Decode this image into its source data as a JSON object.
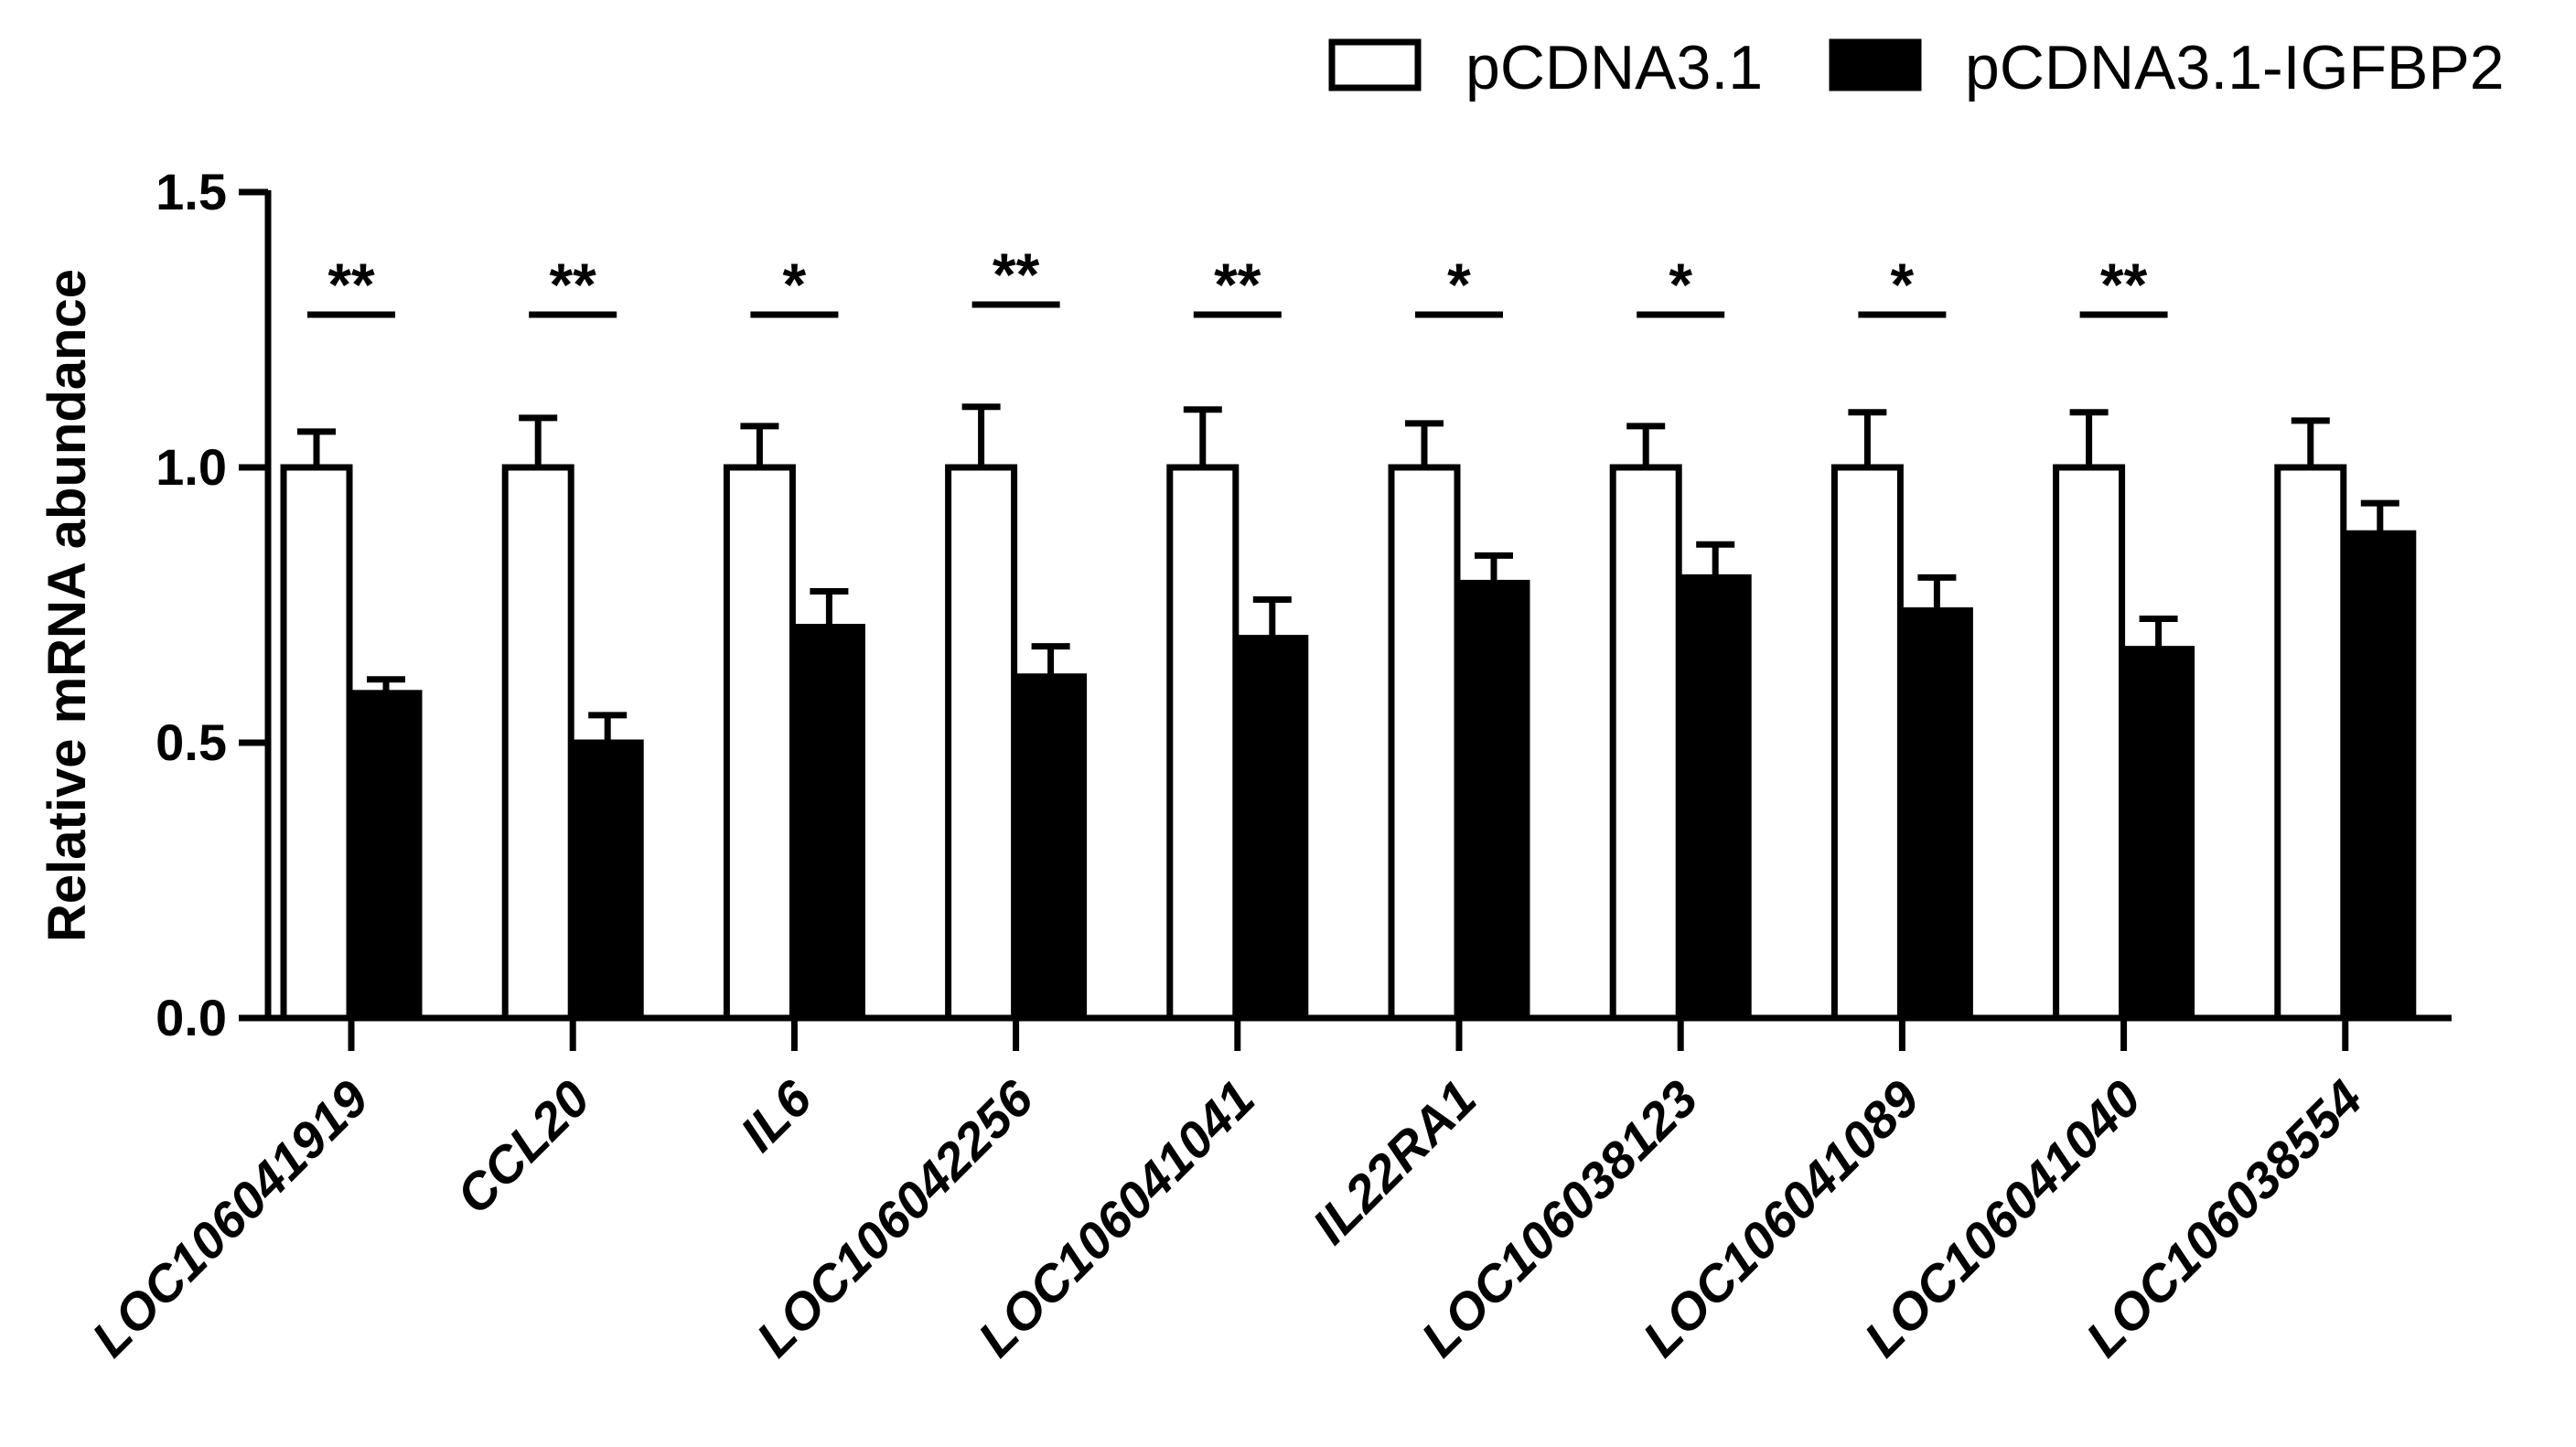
{
  "chart_data": {
    "type": "bar",
    "title": "",
    "xlabel": "",
    "ylabel": "Relative mRNA abundance",
    "ylim": [
      0,
      1.5
    ],
    "yticks": [
      0.0,
      0.5,
      1.0,
      1.5
    ],
    "ytick_labels": [
      "0.0",
      "0.5",
      "1.0",
      "1.5"
    ],
    "grid": false,
    "legend_position": "top-right",
    "categories": [
      "LOC106041919",
      "CCL20",
      "IL6",
      "LOC106042256",
      "LOC106041041",
      "IL22RA1",
      "LOC106038123",
      "LOC106041089",
      "LOC106041040",
      "LOC106038554"
    ],
    "series": [
      {
        "name": "pCDNA3.1",
        "fill": "#ffffff",
        "stroke": "#000000",
        "values": [
          1.0,
          1.0,
          1.0,
          1.0,
          1.0,
          1.0,
          1.0,
          1.0,
          1.0,
          1.0
        ],
        "errors": [
          0.065,
          0.09,
          0.075,
          0.11,
          0.105,
          0.08,
          0.075,
          0.1,
          0.1,
          0.085
        ]
      },
      {
        "name": "pCDNA3.1-IGFBP2",
        "fill": "#000000",
        "stroke": "#000000",
        "values": [
          0.59,
          0.5,
          0.71,
          0.62,
          0.69,
          0.79,
          0.8,
          0.74,
          0.67,
          0.88
        ],
        "errors": [
          0.025,
          0.05,
          0.065,
          0.055,
          0.07,
          0.05,
          0.06,
          0.06,
          0.055,
          0.055
        ]
      }
    ],
    "significance": [
      "**",
      "**",
      "*",
      "**",
      "**",
      "*",
      "*",
      "*",
      "**",
      ""
    ]
  }
}
